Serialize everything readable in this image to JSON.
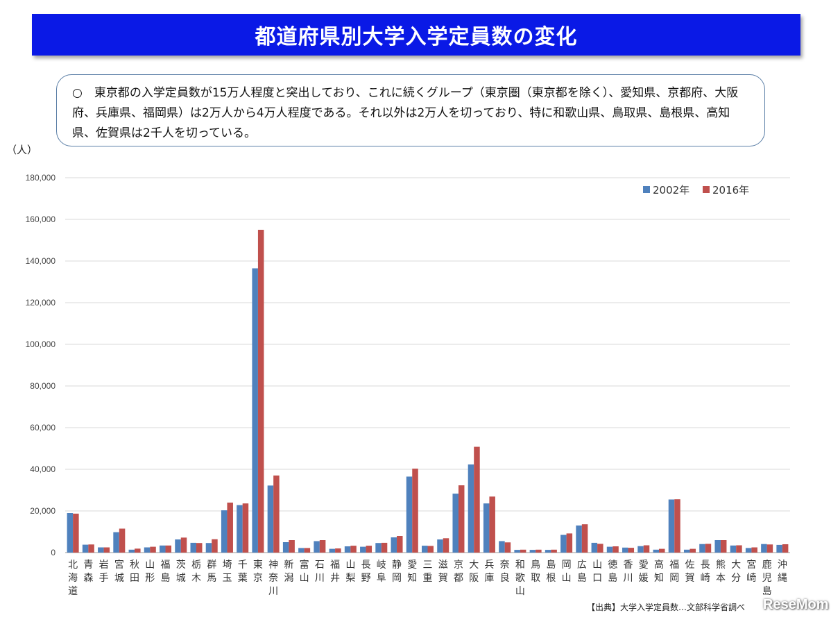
{
  "title": "都道府県別大学入学定員数の変化",
  "note": "○　東京都の入学定員数が15万人程度と突出しており、これに続くグループ（東京圏（東京都を除く）、愛知県、京都府、大阪府、兵庫県、福岡県）は2万人から4万人程度である。それ以外は2万人を切っており、特に和歌山県、鳥取県、島根県、高知県、佐賀県は2千人を切っている。",
  "source": "【出典】大学入学定員数…文部科学省調べ",
  "watermark": "ReseMom",
  "colors": {
    "series_2002": "#4f81bd",
    "series_2016": "#c0504d",
    "title_bg": "#0a19e6"
  },
  "chart_data": {
    "type": "bar",
    "ylabel": "（人）",
    "ylim": [
      0,
      180000
    ],
    "yticks": [
      0,
      20000,
      40000,
      60000,
      80000,
      100000,
      120000,
      140000,
      160000,
      180000
    ],
    "ytick_labels": [
      "0",
      "20,000",
      "40,000",
      "60,000",
      "80,000",
      "100,000",
      "120,000",
      "140,000",
      "160,000",
      "180,000"
    ],
    "grid": true,
    "legend_position": "top-right",
    "categories": [
      "北海道",
      "青森",
      "岩手",
      "宮城",
      "秋田",
      "山形",
      "福島",
      "茨城",
      "栃木",
      "群馬",
      "埼玉",
      "千葉",
      "東京",
      "神奈川",
      "新潟",
      "富山",
      "石川",
      "福井",
      "山梨",
      "長野",
      "岐阜",
      "静岡",
      "愛知",
      "三重",
      "滋賀",
      "京都",
      "大阪",
      "兵庫",
      "奈良",
      "和歌山",
      "鳥取",
      "島根",
      "岡山",
      "広島",
      "山口",
      "徳島",
      "香川",
      "愛媛",
      "高知",
      "福岡",
      "佐賀",
      "長崎",
      "熊本",
      "大分",
      "宮崎",
      "鹿児島",
      "沖縄"
    ],
    "series": [
      {
        "name": "2002年",
        "values": [
          19000,
          3800,
          2500,
          9800,
          1400,
          2500,
          3400,
          6300,
          4700,
          4600,
          20300,
          22800,
          136500,
          32200,
          5000,
          2200,
          5500,
          1800,
          3000,
          2800,
          4600,
          7300,
          36500,
          3300,
          6300,
          28300,
          42300,
          23600,
          5500,
          1300,
          1300,
          1300,
          8500,
          13000,
          4700,
          2800,
          2400,
          3100,
          1400,
          25500,
          1400,
          4100,
          6000,
          3400,
          2200,
          4100,
          3700
        ]
      },
      {
        "name": "2016年",
        "values": [
          18700,
          3900,
          2500,
          11500,
          1900,
          2800,
          3400,
          7200,
          4600,
          6400,
          24000,
          23600,
          155000,
          37000,
          6000,
          2200,
          6000,
          2000,
          3300,
          3300,
          4700,
          8000,
          40300,
          3200,
          6900,
          32300,
          50800,
          26900,
          4900,
          1400,
          1400,
          1400,
          9200,
          13600,
          4200,
          3000,
          2300,
          3500,
          1800,
          25600,
          1800,
          4200,
          6000,
          3500,
          2500,
          3900,
          4000
        ]
      }
    ]
  }
}
